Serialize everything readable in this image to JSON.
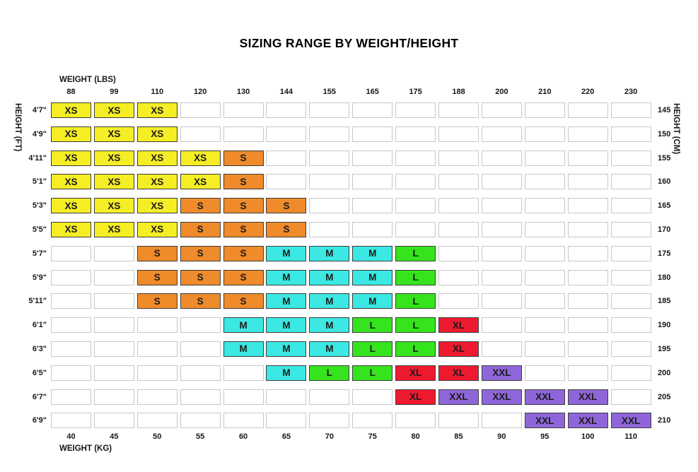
{
  "title": "SIZING RANGE BY WEIGHT/HEIGHT",
  "axis_labels": {
    "top": "WEIGHT (LBS)",
    "bottom": "WEIGHT (KG)",
    "left": "HEIGHT (FT)",
    "right": "HEIGHT (CM)"
  },
  "chart_data": {
    "type": "heatmap",
    "title": "SIZING RANGE BY WEIGHT/HEIGHT",
    "xlabel_top": "WEIGHT (LBS)",
    "xlabel_bottom": "WEIGHT (KG)",
    "ylabel_left": "HEIGHT (FT)",
    "ylabel_right": "HEIGHT (CM)",
    "columns_lbs": [
      "88",
      "99",
      "110",
      "120",
      "130",
      "144",
      "155",
      "165",
      "175",
      "188",
      "200",
      "210",
      "220",
      "230"
    ],
    "columns_kg": [
      "40",
      "45",
      "50",
      "55",
      "60",
      "65",
      "70",
      "75",
      "80",
      "85",
      "90",
      "95",
      "100",
      "110"
    ],
    "size_colors": {
      "XS": "#f5ee24",
      "S": "#ef8b2a",
      "M": "#3be8e3",
      "L": "#35e41c",
      "XL": "#ee1a30",
      "XXL": "#8f66da"
    },
    "rows": [
      {
        "ft": "4'7\"",
        "cm": "145",
        "cells": [
          "XS",
          "XS",
          "XS",
          "",
          "",
          "",
          "",
          "",
          "",
          "",
          "",
          "",
          "",
          ""
        ]
      },
      {
        "ft": "4'9\"",
        "cm": "150",
        "cells": [
          "XS",
          "XS",
          "XS",
          "",
          "",
          "",
          "",
          "",
          "",
          "",
          "",
          "",
          "",
          ""
        ]
      },
      {
        "ft": "4'11\"",
        "cm": "155",
        "cells": [
          "XS",
          "XS",
          "XS",
          "XS",
          "S",
          "",
          "",
          "",
          "",
          "",
          "",
          "",
          "",
          ""
        ]
      },
      {
        "ft": "5'1\"",
        "cm": "160",
        "cells": [
          "XS",
          "XS",
          "XS",
          "XS",
          "S",
          "",
          "",
          "",
          "",
          "",
          "",
          "",
          "",
          ""
        ]
      },
      {
        "ft": "5'3\"",
        "cm": "165",
        "cells": [
          "XS",
          "XS",
          "XS",
          "S",
          "S",
          "S",
          "",
          "",
          "",
          "",
          "",
          "",
          "",
          ""
        ]
      },
      {
        "ft": "5'5\"",
        "cm": "170",
        "cells": [
          "XS",
          "XS",
          "XS",
          "S",
          "S",
          "S",
          "",
          "",
          "",
          "",
          "",
          "",
          "",
          ""
        ]
      },
      {
        "ft": "5'7\"",
        "cm": "175",
        "cells": [
          "",
          "",
          "S",
          "S",
          "S",
          "M",
          "M",
          "M",
          "L",
          "",
          "",
          "",
          "",
          ""
        ]
      },
      {
        "ft": "5'9\"",
        "cm": "180",
        "cells": [
          "",
          "",
          "S",
          "S",
          "S",
          "M",
          "M",
          "M",
          "L",
          "",
          "",
          "",
          "",
          ""
        ]
      },
      {
        "ft": "5'11\"",
        "cm": "185",
        "cells": [
          "",
          "",
          "S",
          "S",
          "S",
          "M",
          "M",
          "M",
          "L",
          "",
          "",
          "",
          "",
          ""
        ]
      },
      {
        "ft": "6'1\"",
        "cm": "190",
        "cells": [
          "",
          "",
          "",
          "",
          "M",
          "M",
          "M",
          "L",
          "L",
          "XL",
          "",
          "",
          "",
          ""
        ]
      },
      {
        "ft": "6'3\"",
        "cm": "195",
        "cells": [
          "",
          "",
          "",
          "",
          "M",
          "M",
          "M",
          "L",
          "L",
          "XL",
          "",
          "",
          "",
          ""
        ]
      },
      {
        "ft": "6'5\"",
        "cm": "200",
        "cells": [
          "",
          "",
          "",
          "",
          "",
          "M",
          "L",
          "L",
          "XL",
          "XL",
          "XXL",
          "",
          "",
          ""
        ]
      },
      {
        "ft": "6'7\"",
        "cm": "205",
        "cells": [
          "",
          "",
          "",
          "",
          "",
          "",
          "",
          "",
          "XL",
          "XXL",
          "XXL",
          "XXL",
          "XXL",
          ""
        ]
      },
      {
        "ft": "6'9\"",
        "cm": "210",
        "cells": [
          "",
          "",
          "",
          "",
          "",
          "",
          "",
          "",
          "",
          "",
          "",
          "XXL",
          "XXL",
          "XXL"
        ]
      }
    ]
  }
}
